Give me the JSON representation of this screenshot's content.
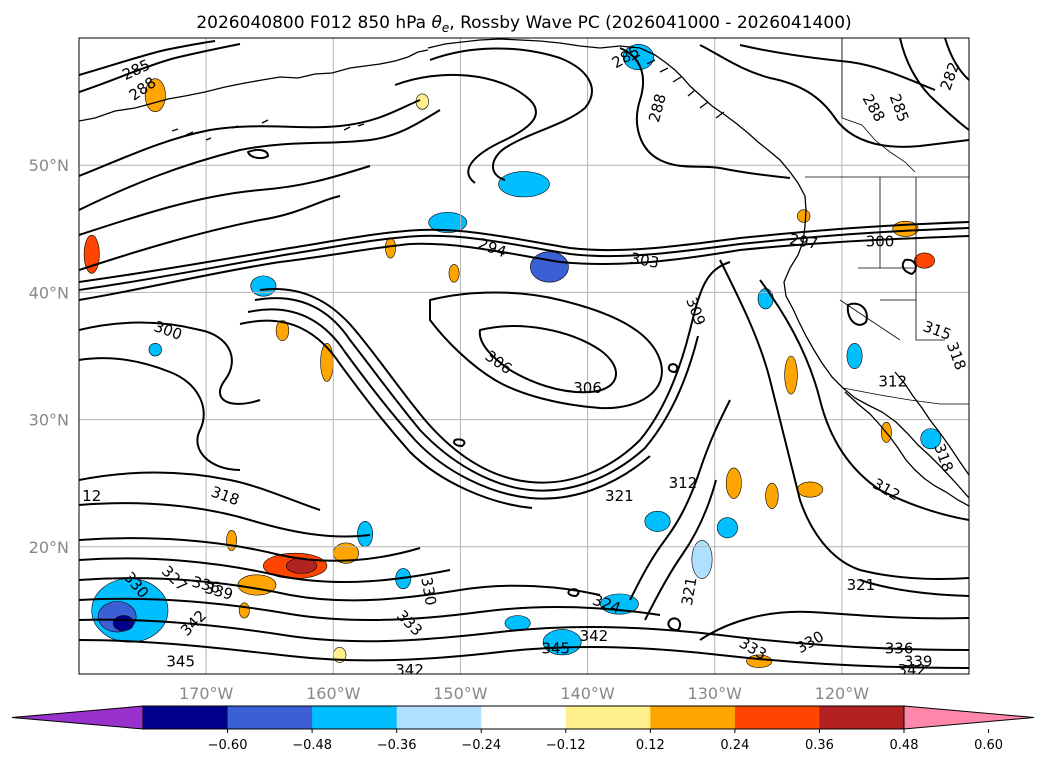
{
  "title": "2026040800 F012 850 hPa $\\theta_e$, Rossby Wave PC (2026041000 - 2026041400)",
  "title_parts": {
    "before": "2026040800 F012 850 hPa ",
    "theta": "θ",
    "sub": "e",
    "after": ", Rossby Wave PC (2026041000 - 2026041400)"
  },
  "map": {
    "lon_range": [
      -180,
      -110
    ],
    "lat_range": [
      10,
      60
    ],
    "grid": true,
    "lat_ticks": [
      {
        "lat": 50,
        "label": "50°N"
      },
      {
        "lat": 40,
        "label": "40°N"
      },
      {
        "lat": 30,
        "label": "30°N"
      },
      {
        "lat": 20,
        "label": "20°N"
      }
    ],
    "lon_ticks": [
      {
        "lon": -170,
        "label": "170°W"
      },
      {
        "lon": -160,
        "label": "160°W"
      },
      {
        "lon": -150,
        "label": "150°W"
      },
      {
        "lon": -140,
        "label": "140°W"
      },
      {
        "lon": -130,
        "label": "130°W"
      },
      {
        "lon": -120,
        "label": "120°W"
      }
    ]
  },
  "contour_labels": [
    {
      "text": "285",
      "lon": -175.5,
      "lat": 57.5,
      "rot": -25
    },
    {
      "text": "288",
      "lon": -175,
      "lat": 56,
      "rot": -35
    },
    {
      "text": "285",
      "lon": -137,
      "lat": 58.5,
      "rot": -30
    },
    {
      "text": "288",
      "lon": -134.5,
      "lat": 54.5,
      "rot": -75
    },
    {
      "text": "288",
      "lon": -117.5,
      "lat": 54.5,
      "rot": 60
    },
    {
      "text": "285",
      "lon": -115.5,
      "lat": 54.5,
      "rot": 70
    },
    {
      "text": "282",
      "lon": -111.5,
      "lat": 57,
      "rot": -70
    },
    {
      "text": "294",
      "lon": -147.5,
      "lat": 43.5,
      "rot": 20
    },
    {
      "text": "303",
      "lon": -135.5,
      "lat": 42.5,
      "rot": 10
    },
    {
      "text": "297",
      "lon": -123,
      "lat": 44,
      "rot": 10
    },
    {
      "text": "300",
      "lon": -117,
      "lat": 44,
      "rot": 0
    },
    {
      "text": "300",
      "lon": -173,
      "lat": 37,
      "rot": 20
    },
    {
      "text": "306",
      "lon": -147,
      "lat": 34.5,
      "rot": 35
    },
    {
      "text": "306",
      "lon": -140,
      "lat": 32.5,
      "rot": 0
    },
    {
      "text": "309",
      "lon": -131.5,
      "lat": 38.5,
      "rot": 70
    },
    {
      "text": "315",
      "lon": -112.5,
      "lat": 37,
      "rot": 20
    },
    {
      "text": "318",
      "lon": -111,
      "lat": 35,
      "rot": 70
    },
    {
      "text": "312",
      "lon": -116,
      "lat": 33,
      "rot": 0
    },
    {
      "text": "318",
      "lon": -112,
      "lat": 27,
      "rot": 70
    },
    {
      "text": "312",
      "lon": -116.5,
      "lat": 24.5,
      "rot": 30
    },
    {
      "text": "312",
      "lon": -132.5,
      "lat": 25,
      "rot": 0
    },
    {
      "text": "321",
      "lon": -137.5,
      "lat": 24,
      "rot": 0
    },
    {
      "text": "318",
      "lon": -168.5,
      "lat": 24,
      "rot": 20
    },
    {
      "text": "12",
      "lon": -179,
      "lat": 24,
      "rot": 0
    },
    {
      "text": "327",
      "lon": -172.5,
      "lat": 17.5,
      "rot": 45
    },
    {
      "text": "330",
      "lon": -175.5,
      "lat": 17,
      "rot": 50
    },
    {
      "text": "336",
      "lon": -170,
      "lat": 17,
      "rot": 15
    },
    {
      "text": "339",
      "lon": -169,
      "lat": 16.5,
      "rot": 15
    },
    {
      "text": "330",
      "lon": -152.5,
      "lat": 16.5,
      "rot": 80
    },
    {
      "text": "342",
      "lon": -171,
      "lat": 14,
      "rot": -45
    },
    {
      "text": "333",
      "lon": -154,
      "lat": 14,
      "rot": 45
    },
    {
      "text": "345",
      "lon": -172,
      "lat": 11,
      "rot": 0
    },
    {
      "text": "342",
      "lon": -154,
      "lat": 10.3,
      "rot": 0
    },
    {
      "text": "324",
      "lon": -138.5,
      "lat": 15.5,
      "rot": 20
    },
    {
      "text": "342",
      "lon": -139.5,
      "lat": 13,
      "rot": 0
    },
    {
      "text": "345",
      "lon": -142.5,
      "lat": 12,
      "rot": 0
    },
    {
      "text": "321",
      "lon": -132,
      "lat": 16.5,
      "rot": -80
    },
    {
      "text": "321",
      "lon": -118.5,
      "lat": 17,
      "rot": 0
    },
    {
      "text": "333",
      "lon": -127,
      "lat": 12,
      "rot": 30
    },
    {
      "text": "330",
      "lon": -122.5,
      "lat": 12.5,
      "rot": -30
    },
    {
      "text": "336",
      "lon": -115.5,
      "lat": 12,
      "rot": 0
    },
    {
      "text": "339",
      "lon": -114,
      "lat": 11,
      "rot": 0
    },
    {
      "text": "342",
      "lon": -114.5,
      "lat": 10.3,
      "rot": 0
    }
  ],
  "colorbar": {
    "levels": [
      "−0.60",
      "−0.48",
      "−0.36",
      "−0.24",
      "−0.12",
      "0.12",
      "0.24",
      "0.36",
      "0.48",
      "0.60"
    ],
    "colors": [
      "#9932cc",
      "#00008b",
      "#3b5fd4",
      "#00bfff",
      "#b0e0ff",
      "#ffffff",
      "#fff08c",
      "#ffa500",
      "#ff4500",
      "#b22222",
      "#ff88aa"
    ],
    "extend": "both"
  },
  "anomaly_cells": [
    {
      "lon": -143,
      "lat": 42,
      "rx": 1.5,
      "ry": 1.2,
      "bin": 2
    },
    {
      "lon": -145,
      "lat": 48.5,
      "rx": 2,
      "ry": 1,
      "bin": 3
    },
    {
      "lon": -151,
      "lat": 45.5,
      "rx": 1.5,
      "ry": 0.8,
      "bin": 3
    },
    {
      "lon": -176,
      "lat": 15,
      "rx": 3,
      "ry": 2.5,
      "bin": 3
    },
    {
      "lon": -177,
      "lat": 14.5,
      "rx": 1.5,
      "ry": 1.2,
      "bin": 2
    },
    {
      "lon": -176.5,
      "lat": 14,
      "rx": 0.8,
      "ry": 0.6,
      "bin": 1
    },
    {
      "lon": -142,
      "lat": 12.5,
      "rx": 1.5,
      "ry": 1,
      "bin": 3
    },
    {
      "lon": -145.5,
      "lat": 14,
      "rx": 1,
      "ry": 0.6,
      "bin": 3
    },
    {
      "lon": -137.5,
      "lat": 15.5,
      "rx": 1.5,
      "ry": 0.8,
      "bin": 3
    },
    {
      "lon": -134.5,
      "lat": 22,
      "rx": 1,
      "ry": 0.8,
      "bin": 3
    },
    {
      "lon": -129,
      "lat": 21.5,
      "rx": 0.8,
      "ry": 0.8,
      "bin": 3
    },
    {
      "lon": -131,
      "lat": 19,
      "rx": 0.8,
      "ry": 1.5,
      "bin": 4
    },
    {
      "lon": -113,
      "lat": 28.5,
      "rx": 0.8,
      "ry": 0.8,
      "bin": 3
    },
    {
      "lon": -126,
      "lat": 39.5,
      "rx": 0.6,
      "ry": 0.8,
      "bin": 3
    },
    {
      "lon": -165.5,
      "lat": 40.5,
      "rx": 1,
      "ry": 0.8,
      "bin": 3
    },
    {
      "lon": -136,
      "lat": 58.5,
      "rx": 1.2,
      "ry": 1,
      "bin": 3
    },
    {
      "lon": -119,
      "lat": 35,
      "rx": 0.6,
      "ry": 1,
      "bin": 3
    },
    {
      "lon": -157.5,
      "lat": 21,
      "rx": 0.6,
      "ry": 1,
      "bin": 3
    },
    {
      "lon": -154.5,
      "lat": 17.5,
      "rx": 0.6,
      "ry": 0.8,
      "bin": 3
    },
    {
      "lon": -174,
      "lat": 35.5,
      "rx": 0.5,
      "ry": 0.5,
      "bin": 3
    },
    {
      "lon": -163,
      "lat": 18.5,
      "rx": 2.5,
      "ry": 1,
      "bin": 8
    },
    {
      "lon": -162.5,
      "lat": 18.5,
      "rx": 1.2,
      "ry": 0.6,
      "bin": 9
    },
    {
      "lon": -166,
      "lat": 17,
      "rx": 1.5,
      "ry": 0.8,
      "bin": 7
    },
    {
      "lon": -159,
      "lat": 19.5,
      "rx": 1,
      "ry": 0.8,
      "bin": 7
    },
    {
      "lon": -174,
      "lat": 55.5,
      "rx": 0.8,
      "ry": 1.3,
      "bin": 7
    },
    {
      "lon": -179,
      "lat": 43,
      "rx": 0.6,
      "ry": 1.5,
      "bin": 8
    },
    {
      "lon": -160.5,
      "lat": 34.5,
      "rx": 0.5,
      "ry": 1.5,
      "bin": 7
    },
    {
      "lon": -164,
      "lat": 37,
      "rx": 0.5,
      "ry": 0.8,
      "bin": 7
    },
    {
      "lon": -124,
      "lat": 33.5,
      "rx": 0.5,
      "ry": 1.5,
      "bin": 7
    },
    {
      "lon": -128.5,
      "lat": 25,
      "rx": 0.6,
      "ry": 1.2,
      "bin": 7
    },
    {
      "lon": -125.5,
      "lat": 24,
      "rx": 0.5,
      "ry": 1,
      "bin": 7
    },
    {
      "lon": -122.5,
      "lat": 24.5,
      "rx": 1,
      "ry": 0.6,
      "bin": 7
    },
    {
      "lon": -126.5,
      "lat": 11,
      "rx": 1,
      "ry": 0.5,
      "bin": 7
    },
    {
      "lon": -115,
      "lat": 45,
      "rx": 1,
      "ry": 0.6,
      "bin": 7
    },
    {
      "lon": -113.5,
      "lat": 42.5,
      "rx": 0.8,
      "ry": 0.6,
      "bin": 8
    },
    {
      "lon": -168,
      "lat": 20.5,
      "rx": 0.4,
      "ry": 0.8,
      "bin": 7
    },
    {
      "lon": -159.5,
      "lat": 11.5,
      "rx": 0.5,
      "ry": 0.6,
      "bin": 6
    },
    {
      "lon": -155.5,
      "lat": 43.5,
      "rx": 0.4,
      "ry": 0.8,
      "bin": 7
    },
    {
      "lon": -150.5,
      "lat": 41.5,
      "rx": 0.4,
      "ry": 0.7,
      "bin": 7
    },
    {
      "lon": -116.5,
      "lat": 29,
      "rx": 0.4,
      "ry": 0.8,
      "bin": 7
    },
    {
      "lon": -153,
      "lat": 55,
      "rx": 0.5,
      "ry": 0.6,
      "bin": 6
    },
    {
      "lon": -167,
      "lat": 15,
      "rx": 0.4,
      "ry": 0.6,
      "bin": 7
    },
    {
      "lon": -123,
      "lat": 46,
      "rx": 0.5,
      "ry": 0.5,
      "bin": 7
    }
  ]
}
